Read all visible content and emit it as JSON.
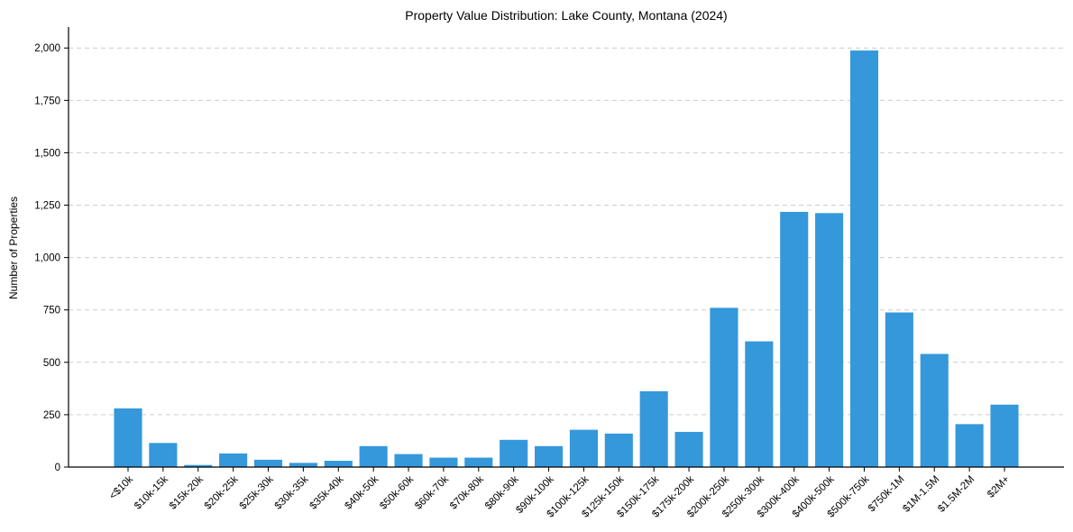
{
  "chart_data": {
    "type": "bar",
    "title": "Property Value Distribution: Lake County, Montana (2024)",
    "xlabel": "",
    "ylabel": "Number of Properties",
    "ylim": [
      0,
      2100
    ],
    "yticks": [
      0,
      250,
      500,
      750,
      1000,
      1250,
      1500,
      1750,
      2000
    ],
    "ytick_labels": [
      "0",
      "250",
      "500",
      "750",
      "1,000",
      "1,250",
      "1,500",
      "1,750",
      "2,000"
    ],
    "grid": true,
    "bar_color": "#3498db",
    "categories": [
      "<$10k",
      "$10k-15k",
      "$15k-20k",
      "$20k-25k",
      "$25k-30k",
      "$30k-35k",
      "$35k-40k",
      "$40k-50k",
      "$50k-60k",
      "$60k-70k",
      "$70k-80k",
      "$80k-90k",
      "$90k-100k",
      "$100k-125k",
      "$125k-150k",
      "$150k-175k",
      "$175k-200k",
      "$200k-250k",
      "$250k-300k",
      "$300k-400k",
      "$400k-500k",
      "$500k-750k",
      "$750k-1M",
      "$1M-1.5M",
      "$1.5M-2M",
      "$2M+"
    ],
    "values": [
      280,
      115,
      10,
      65,
      35,
      20,
      30,
      100,
      62,
      45,
      45,
      130,
      100,
      178,
      160,
      362,
      168,
      760,
      600,
      1218,
      1212,
      1988,
      738,
      540,
      205,
      298
    ]
  }
}
